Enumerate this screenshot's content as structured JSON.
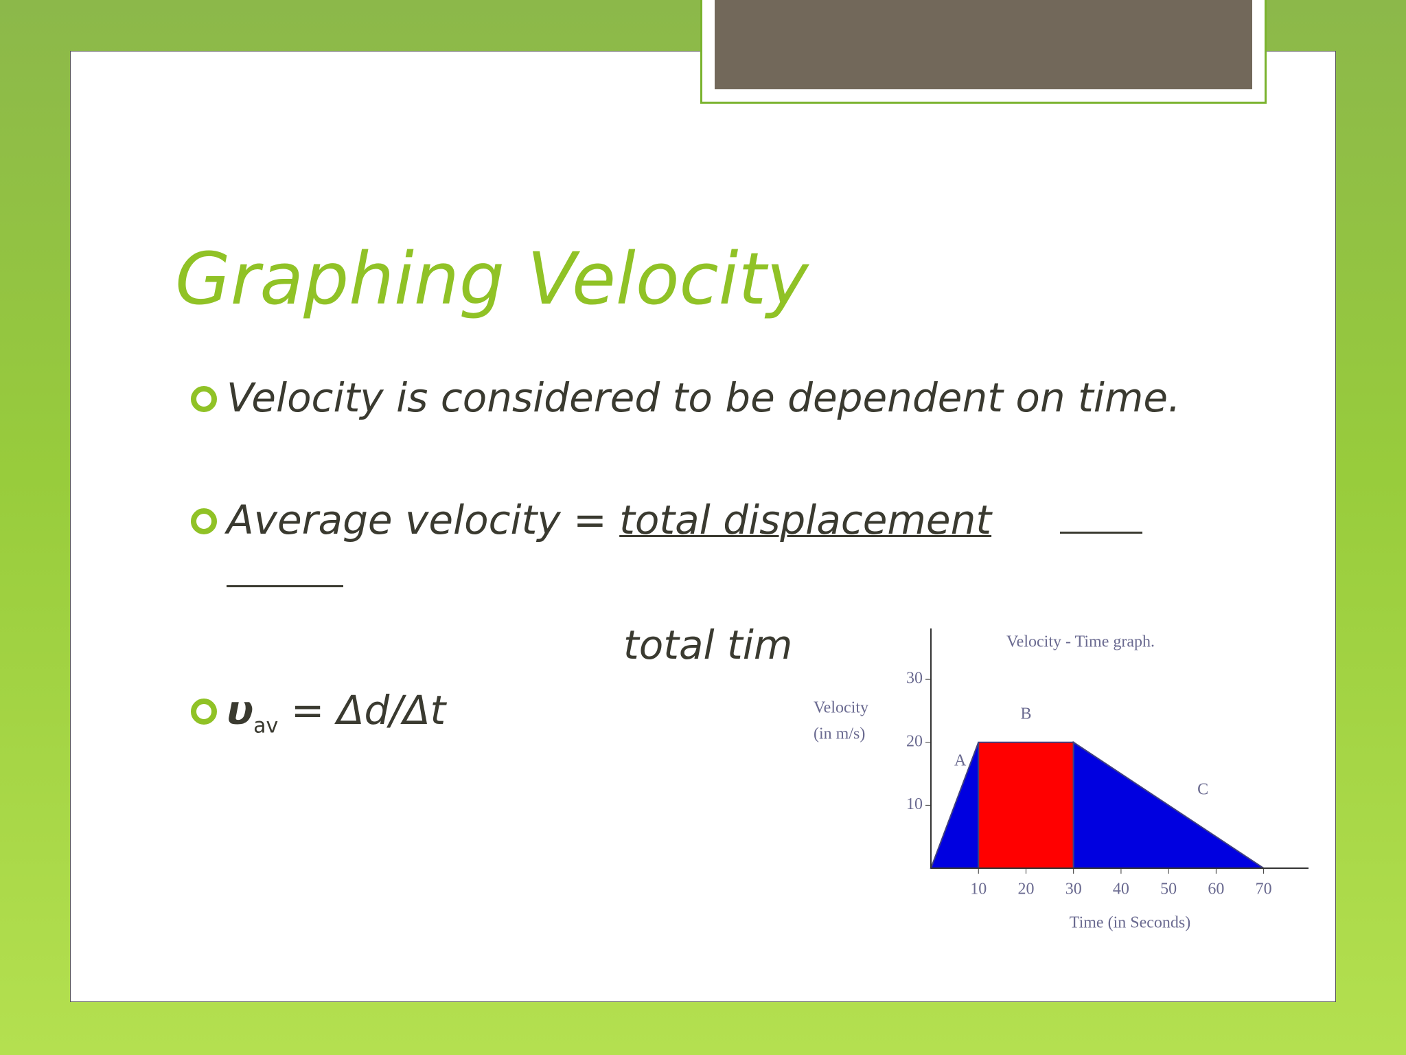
{
  "slide": {
    "title": "Graphing Velocity",
    "bullets": [
      {
        "text": "Velocity is considered to be dependent on time."
      },
      {
        "text": "Average velocity =",
        "numerator": "total displacement",
        "denominator": "total tim"
      },
      {
        "symbol": "υ",
        "subscript": "av",
        "text": "= Δd/Δt"
      }
    ]
  },
  "chart_data": {
    "type": "area",
    "title": "Velocity - Time graph.",
    "x_label": "Time (in Seconds)",
    "y_label": [
      "Velocity",
      "(in m/s)"
    ],
    "xlim": [
      0,
      78
    ],
    "ylim": [
      0,
      37
    ],
    "xticks": [
      10,
      20,
      30,
      40,
      50,
      60,
      70
    ],
    "yticks": [
      10,
      20,
      30
    ],
    "series": [
      {
        "name": "A",
        "color": "#0000e0",
        "x": [
          0,
          10
        ],
        "values": [
          0,
          20
        ]
      },
      {
        "name": "B",
        "color": "#ff0000",
        "x": [
          10,
          30
        ],
        "values": [
          20,
          20
        ]
      },
      {
        "name": "C",
        "color": "#0000e0",
        "x": [
          30,
          70
        ],
        "values": [
          20,
          0
        ]
      }
    ]
  }
}
